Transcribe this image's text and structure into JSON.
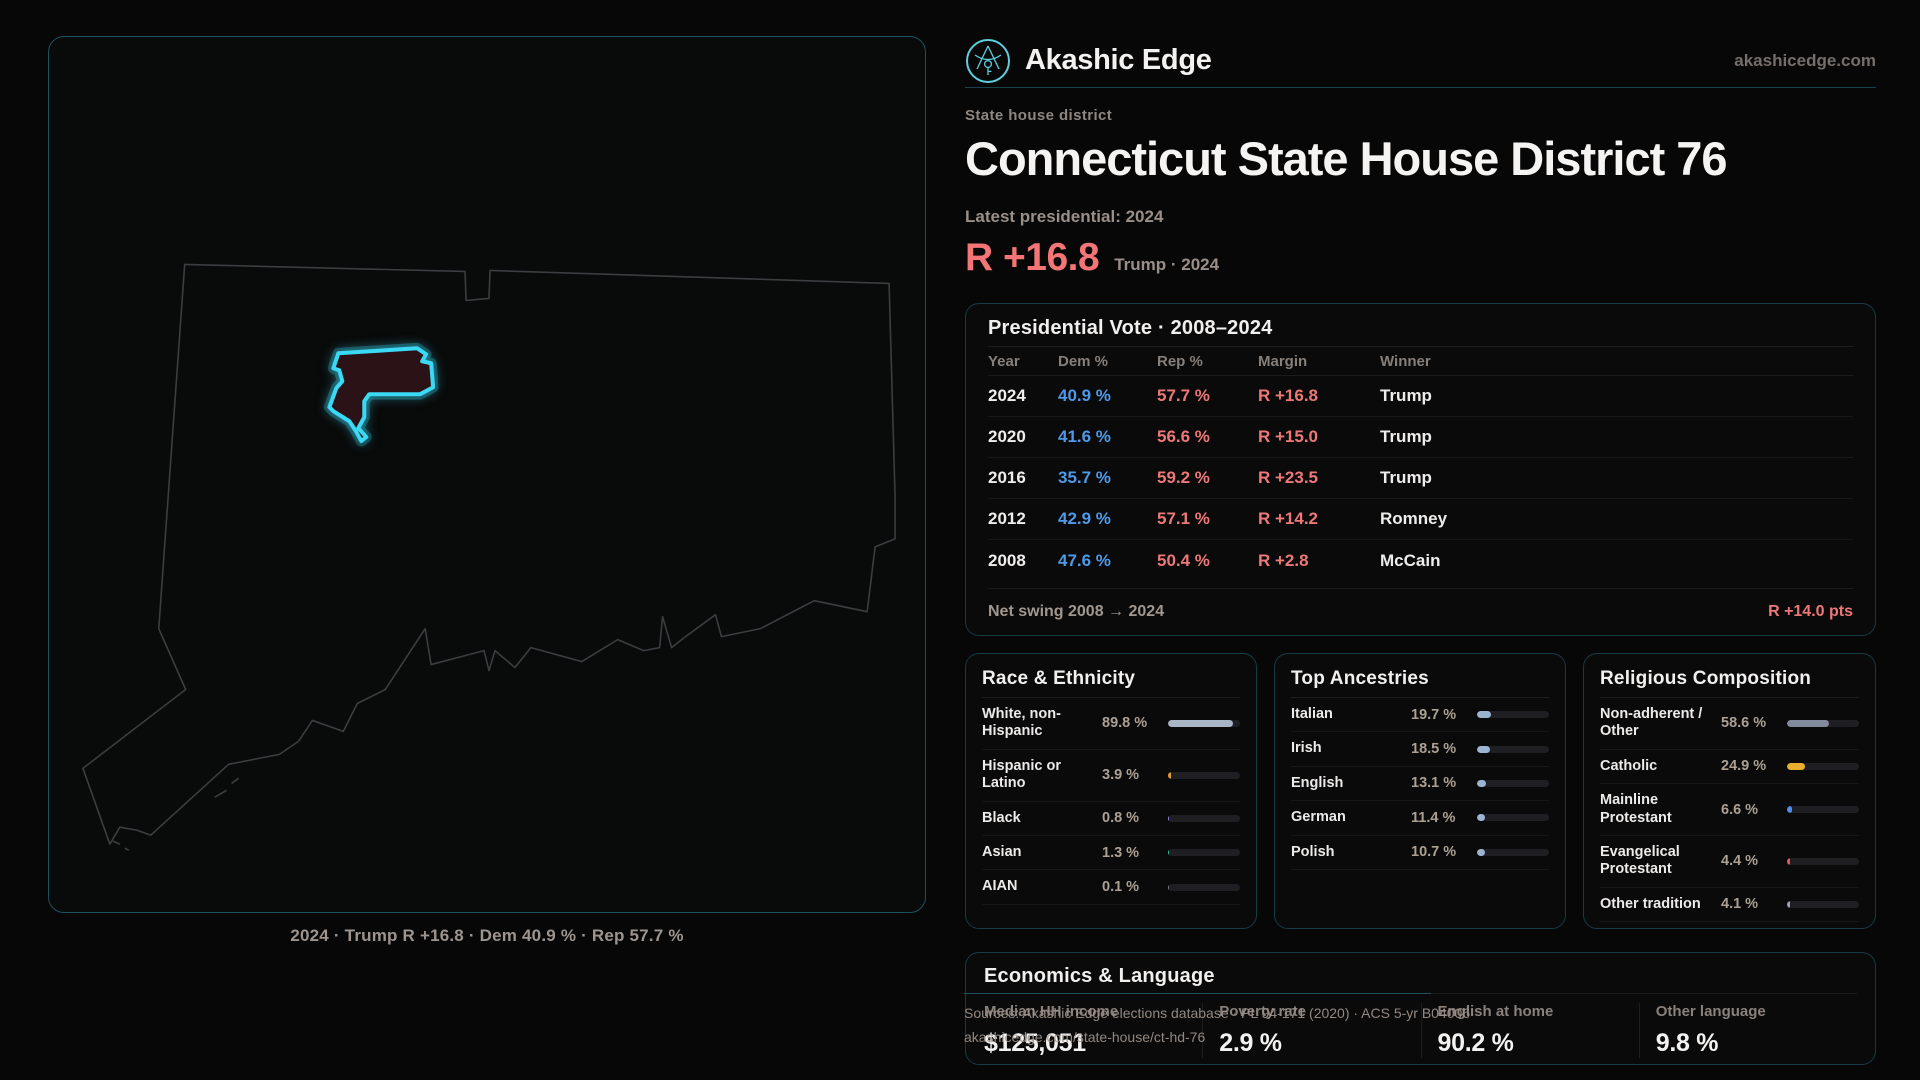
{
  "brand": {
    "name": "Akashic Edge",
    "domain": "akashicedge.com"
  },
  "header": {
    "eyebrow": "State house district",
    "title": "Connecticut State House District 76",
    "latest_label": "Latest presidential: 2024",
    "margin_value": "R +16.8",
    "margin_caption": "Trump · 2024"
  },
  "map": {
    "caption": "2024 · Trump R +16.8 · Dem 40.9 % · Rep 57.7 %"
  },
  "presidential": {
    "title": "Presidential Vote · 2008–2024",
    "columns": [
      "Year",
      "Dem %",
      "Rep %",
      "Margin",
      "Winner"
    ],
    "rows": [
      {
        "year": "2024",
        "dem": "40.9 %",
        "rep": "57.7 %",
        "margin": "R +16.8",
        "winner": "Trump"
      },
      {
        "year": "2020",
        "dem": "41.6 %",
        "rep": "56.6 %",
        "margin": "R +15.0",
        "winner": "Trump"
      },
      {
        "year": "2016",
        "dem": "35.7 %",
        "rep": "59.2 %",
        "margin": "R +23.5",
        "winner": "Trump"
      },
      {
        "year": "2012",
        "dem": "42.9 %",
        "rep": "57.1 %",
        "margin": "R +14.2",
        "winner": "Romney"
      },
      {
        "year": "2008",
        "dem": "47.6 %",
        "rep": "50.4 %",
        "margin": "R +2.8",
        "winner": "McCain"
      }
    ],
    "net_swing_label": "Net swing 2008 → 2024",
    "net_swing_value": "R +14.0 pts"
  },
  "demographics": [
    {
      "key": "race",
      "title": "Race & Ethnicity",
      "rows": [
        {
          "label": "White, non-Hispanic",
          "value": "89.8 %",
          "pct": 89.8,
          "color": "#a9b6c6"
        },
        {
          "label": "Hispanic or Latino",
          "value": "3.9 %",
          "pct": 3.9,
          "color": "#e39a2e"
        },
        {
          "label": "Black",
          "value": "0.8 %",
          "pct": 0.8,
          "color": "#8d80e8"
        },
        {
          "label": "Asian",
          "value": "1.3 %",
          "pct": 1.3,
          "color": "#2ec49a"
        },
        {
          "label": "AIAN",
          "value": "0.1 %",
          "pct": 0.1,
          "color": "#7a8088"
        }
      ]
    },
    {
      "key": "ancestries",
      "title": "Top Ancestries",
      "rows": [
        {
          "label": "Italian",
          "value": "19.7 %",
          "pct": 19.7,
          "color": "#9db4d0"
        },
        {
          "label": "Irish",
          "value": "18.5 %",
          "pct": 18.5,
          "color": "#9db4d0"
        },
        {
          "label": "English",
          "value": "13.1 %",
          "pct": 13.1,
          "color": "#9db4d0"
        },
        {
          "label": "German",
          "value": "11.4 %",
          "pct": 11.4,
          "color": "#9db4d0"
        },
        {
          "label": "Polish",
          "value": "10.7 %",
          "pct": 10.7,
          "color": "#9db4d0"
        }
      ]
    },
    {
      "key": "religion",
      "title": "Religious Composition",
      "rows": [
        {
          "label": "Non-adherent / Other",
          "value": "58.6 %",
          "pct": 58.6,
          "color": "#818b9c"
        },
        {
          "label": "Catholic",
          "value": "24.9 %",
          "pct": 24.9,
          "color": "#e8b02e"
        },
        {
          "label": "Mainline Protestant",
          "value": "6.6 %",
          "pct": 6.6,
          "color": "#4e8ee8"
        },
        {
          "label": "Evangelical Protestant",
          "value": "4.4 %",
          "pct": 4.4,
          "color": "#e25b5b"
        },
        {
          "label": "Other tradition",
          "value": "4.1 %",
          "pct": 4.1,
          "color": "#9aa2ad"
        }
      ]
    }
  ],
  "economics": {
    "title": "Economics & Language",
    "stats": [
      {
        "label": "Median HH income",
        "value": "$125,051"
      },
      {
        "label": "Poverty rate",
        "value": "2.9 %"
      },
      {
        "label": "English at home",
        "value": "90.2 %"
      },
      {
        "label": "Other language",
        "value": "9.8 %"
      }
    ]
  },
  "footer": {
    "line1": "Sources: Akashic Edge elections database · PL 94-171 (2020) · ACS 5-yr B04006",
    "line2": "akashicedge.com/state-house/ct-hd-76"
  },
  "colors": {
    "accent_teal": "#3bd9f4",
    "dem_blue": "#4f9ae8",
    "rep_red": "#ee7878",
    "margin_red": "#f47575",
    "panel_border": "#173b44",
    "map_border": "#1e5160"
  }
}
